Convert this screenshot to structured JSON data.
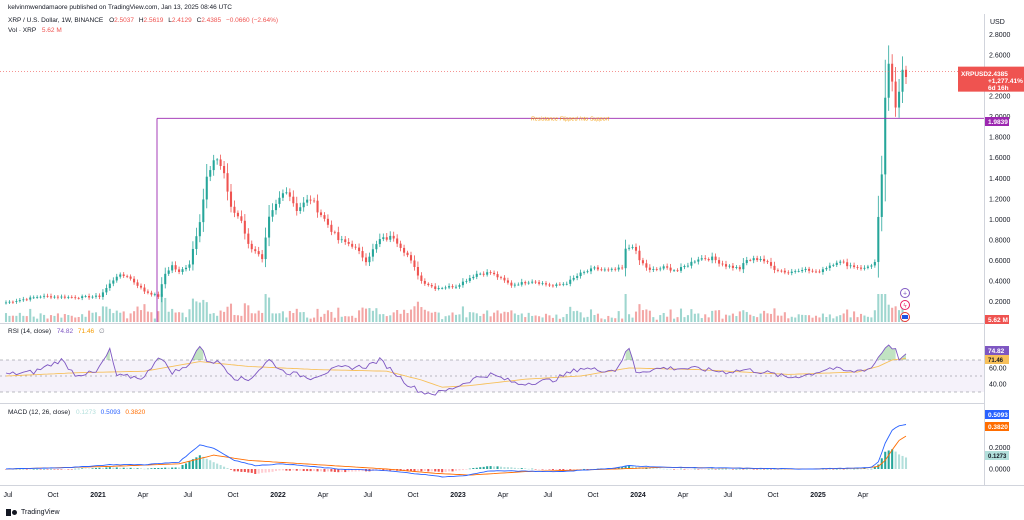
{
  "publisher_line": "kelvinmwendamaore published on TradingView.com, Jan 13, 2025 08:46 UTC",
  "footer_brand": "TradingView",
  "symbol_header": {
    "name": "XRP / U.S. Dollar, 1W, BINANCE",
    "o_label": "O",
    "o_value": "2.5037",
    "h_label": "H",
    "h_value": "2.5619",
    "l_label": "L",
    "l_value": "2.4129",
    "c_label": "C",
    "c_value": "2.4385",
    "change": "−0.0660 (−2.64%)",
    "vol_label": "Vol · XRP",
    "vol_value": "5.62 M"
  },
  "colors": {
    "up": "#26a69a",
    "down": "#ef5350",
    "vol_up": "#9ed6cf",
    "vol_down": "#f3a6a5",
    "resistance": "#9c27b0",
    "resistance_text": "#f59b00",
    "rsi_line": "#7e57c2",
    "rsi_ma": "#f7c05a",
    "macd_line": "#2962ff",
    "signal_line": "#ff6d00",
    "hist_up_strong": "#26a69a",
    "hist_up_weak": "#b2dfdb",
    "hist_down_strong": "#ef5350",
    "hist_down_weak": "#ffcdd2"
  },
  "price_tags": {
    "symbol": "XRPUSD",
    "price": "2.4385",
    "change_pct": "+1,277.41%",
    "countdown": "6d 16h",
    "resistance_level": "1.9839",
    "volume": "5.62 M"
  },
  "rsi_header": {
    "name": "RSI (14, close)",
    "v1": "74.82",
    "v2": "71.46",
    "icon": "∅"
  },
  "rsi_tags": {
    "rsi": "74.82",
    "ma": "71.46"
  },
  "macd_header": {
    "name": "MACD (12, 26, close)",
    "v1": "0.1273",
    "v2": "0.5093",
    "v3": "0.3820"
  },
  "macd_tags": {
    "macd": "0.5093",
    "signal": "0.3820",
    "level": "0.2000",
    "hist": "0.1273"
  },
  "chart_data": {
    "type": "candlestick",
    "interval": "1W",
    "currency_label": "USD",
    "price_scale": "linear",
    "price_ticks": [
      "2.8000",
      "2.6000",
      "2.4000",
      "2.2000",
      "2.0000",
      "1.8000",
      "1.6000",
      "1.4000",
      "1.2000",
      "1.0000",
      "0.8000",
      "0.6000",
      "0.4000",
      "0.2000"
    ],
    "price_ylim": [
      0.0,
      3.0
    ],
    "time_ticks": [
      "Jul",
      "Oct",
      "2021",
      "Apr",
      "Jul",
      "Oct",
      "2022",
      "Apr",
      "Jul",
      "Oct",
      "2023",
      "Apr",
      "Jul",
      "Oct",
      "2024",
      "Apr",
      "Jul",
      "Oct",
      "2025",
      "Apr"
    ],
    "annotation": {
      "text": "Resistance Flipped Into Support",
      "price": 1.9839
    },
    "series_anchors": [
      [
        0,
        0.19
      ],
      [
        10,
        0.25
      ],
      [
        20,
        0.24
      ],
      [
        27,
        0.25
      ],
      [
        32,
        0.45
      ],
      [
        35,
        0.45
      ],
      [
        40,
        0.3
      ],
      [
        44,
        0.25
      ],
      [
        46,
        0.47
      ],
      [
        48,
        0.55
      ],
      [
        50,
        0.48
      ],
      [
        53,
        0.57
      ],
      [
        56,
        1.0
      ],
      [
        58,
        1.4
      ],
      [
        61,
        1.6
      ],
      [
        63,
        1.45
      ],
      [
        65,
        1.1
      ],
      [
        68,
        1.0
      ],
      [
        70,
        0.75
      ],
      [
        72,
        0.7
      ],
      [
        74,
        0.6
      ],
      [
        76,
        1.0
      ],
      [
        79,
        1.2
      ],
      [
        81,
        1.3
      ],
      [
        84,
        1.1
      ],
      [
        88,
        1.2
      ],
      [
        92,
        1.0
      ],
      [
        96,
        0.8
      ],
      [
        100,
        0.75
      ],
      [
        104,
        0.6
      ],
      [
        108,
        0.8
      ],
      [
        112,
        0.83
      ],
      [
        116,
        0.65
      ],
      [
        120,
        0.4
      ],
      [
        124,
        0.33
      ],
      [
        130,
        0.35
      ],
      [
        136,
        0.47
      ],
      [
        140,
        0.48
      ],
      [
        146,
        0.36
      ],
      [
        152,
        0.4
      ],
      [
        158,
        0.35
      ],
      [
        162,
        0.38
      ],
      [
        166,
        0.47
      ],
      [
        170,
        0.52
      ],
      [
        174,
        0.5
      ],
      [
        178,
        0.52
      ],
      [
        179,
        0.7
      ],
      [
        181,
        0.75
      ],
      [
        183,
        0.6
      ],
      [
        186,
        0.5
      ],
      [
        190,
        0.53
      ],
      [
        194,
        0.5
      ],
      [
        200,
        0.62
      ],
      [
        204,
        0.62
      ],
      [
        208,
        0.55
      ],
      [
        212,
        0.52
      ],
      [
        214,
        0.6
      ],
      [
        218,
        0.62
      ],
      [
        222,
        0.52
      ],
      [
        226,
        0.48
      ],
      [
        230,
        0.52
      ],
      [
        234,
        0.48
      ],
      [
        240,
        0.59
      ],
      [
        244,
        0.55
      ],
      [
        248,
        0.52
      ],
      [
        251,
        0.58
      ],
      [
        252,
        1.0
      ],
      [
        253,
        1.4
      ],
      [
        254,
        2.2
      ],
      [
        255,
        2.45
      ],
      [
        256,
        2.3
      ],
      [
        257,
        2.1
      ],
      [
        258,
        2.3
      ],
      [
        259,
        2.5
      ],
      [
        260,
        2.44
      ]
    ],
    "rsi": {
      "ylim": [
        20,
        100
      ],
      "ticks": [
        "80.00",
        "60.00",
        "40.00"
      ],
      "overbought": 70,
      "oversold": 30,
      "anchors": [
        [
          0,
          52
        ],
        [
          8,
          55
        ],
        [
          16,
          70
        ],
        [
          20,
          52
        ],
        [
          26,
          54
        ],
        [
          30,
          82
        ],
        [
          32,
          50
        ],
        [
          40,
          48
        ],
        [
          44,
          75
        ],
        [
          48,
          55
        ],
        [
          52,
          60
        ],
        [
          56,
          88
        ],
        [
          58,
          70
        ],
        [
          62,
          66
        ],
        [
          66,
          48
        ],
        [
          70,
          45
        ],
        [
          76,
          70
        ],
        [
          80,
          56
        ],
        [
          88,
          48
        ],
        [
          96,
          60
        ],
        [
          104,
          62
        ],
        [
          108,
          70
        ],
        [
          116,
          40
        ],
        [
          120,
          30
        ],
        [
          124,
          28
        ],
        [
          128,
          33
        ],
        [
          136,
          48
        ],
        [
          140,
          52
        ],
        [
          148,
          40
        ],
        [
          158,
          45
        ],
        [
          166,
          60
        ],
        [
          170,
          58
        ],
        [
          176,
          57
        ],
        [
          180,
          85
        ],
        [
          182,
          55
        ],
        [
          190,
          60
        ],
        [
          200,
          59
        ],
        [
          208,
          55
        ],
        [
          214,
          58
        ],
        [
          220,
          54
        ],
        [
          226,
          48
        ],
        [
          232,
          52
        ],
        [
          238,
          60
        ],
        [
          244,
          55
        ],
        [
          250,
          60
        ],
        [
          253,
          80
        ],
        [
          255,
          90
        ],
        [
          257,
          82
        ],
        [
          258,
          72
        ],
        [
          260,
          75
        ]
      ],
      "ma_anchors": [
        [
          0,
          50
        ],
        [
          20,
          54
        ],
        [
          40,
          56
        ],
        [
          56,
          68
        ],
        [
          70,
          62
        ],
        [
          90,
          58
        ],
        [
          110,
          56
        ],
        [
          120,
          45
        ],
        [
          126,
          36
        ],
        [
          134,
          38
        ],
        [
          150,
          46
        ],
        [
          166,
          50
        ],
        [
          180,
          60
        ],
        [
          200,
          58
        ],
        [
          226,
          52
        ],
        [
          246,
          55
        ],
        [
          252,
          62
        ],
        [
          256,
          70
        ],
        [
          260,
          72
        ]
      ]
    },
    "macd": {
      "ylim": [
        -0.15,
        0.6
      ],
      "ticks": [
        "0.2000",
        "0.0000"
      ],
      "macd_anchors": [
        [
          0,
          0.0
        ],
        [
          20,
          0.02
        ],
        [
          30,
          0.05
        ],
        [
          40,
          0.05
        ],
        [
          50,
          0.08
        ],
        [
          56,
          0.28
        ],
        [
          60,
          0.24
        ],
        [
          66,
          0.1
        ],
        [
          72,
          0.04
        ],
        [
          80,
          0.06
        ],
        [
          96,
          0.0
        ],
        [
          110,
          -0.02
        ],
        [
          120,
          -0.06
        ],
        [
          126,
          -0.09
        ],
        [
          132,
          -0.08
        ],
        [
          140,
          -0.02
        ],
        [
          160,
          -0.03
        ],
        [
          176,
          0.01
        ],
        [
          180,
          0.04
        ],
        [
          190,
          0.02
        ],
        [
          210,
          0.01
        ],
        [
          230,
          0.0
        ],
        [
          246,
          0.01
        ],
        [
          250,
          0.02
        ],
        [
          252,
          0.08
        ],
        [
          254,
          0.3
        ],
        [
          256,
          0.45
        ],
        [
          258,
          0.5
        ],
        [
          260,
          0.51
        ]
      ],
      "signal_anchors": [
        [
          0,
          0.0
        ],
        [
          30,
          0.03
        ],
        [
          50,
          0.06
        ],
        [
          60,
          0.16
        ],
        [
          70,
          0.1
        ],
        [
          90,
          0.05
        ],
        [
          110,
          0.0
        ],
        [
          124,
          -0.05
        ],
        [
          134,
          -0.07
        ],
        [
          150,
          -0.03
        ],
        [
          176,
          0.0
        ],
        [
          190,
          0.02
        ],
        [
          230,
          0.0
        ],
        [
          248,
          0.01
        ],
        [
          252,
          0.03
        ],
        [
          254,
          0.1
        ],
        [
          256,
          0.22
        ],
        [
          258,
          0.33
        ],
        [
          260,
          0.38
        ]
      ]
    }
  }
}
